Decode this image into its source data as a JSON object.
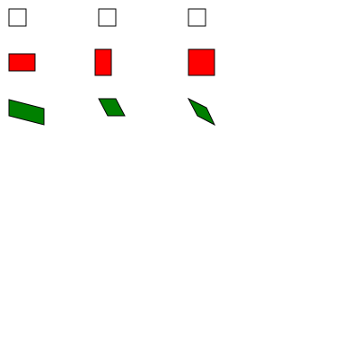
{
  "colors": {
    "background": "#ffffff",
    "outline": "#000000",
    "white_fill": "#ffffff",
    "red_fill": "#ff0000",
    "green_fill": "#008000"
  },
  "rows": [
    {
      "name": "white-squares",
      "fill": "white_fill",
      "shapes": [
        "square",
        "square",
        "square"
      ]
    },
    {
      "name": "red-rectangles",
      "fill": "red_fill",
      "shapes": [
        "wide-rectangle",
        "tall-rectangle",
        "large-square"
      ]
    },
    {
      "name": "green-parallelograms",
      "fill": "green_fill",
      "shapes": [
        "skewed-quadrilateral",
        "slanted-parallelogram",
        "rotated-parallelogram"
      ]
    }
  ]
}
